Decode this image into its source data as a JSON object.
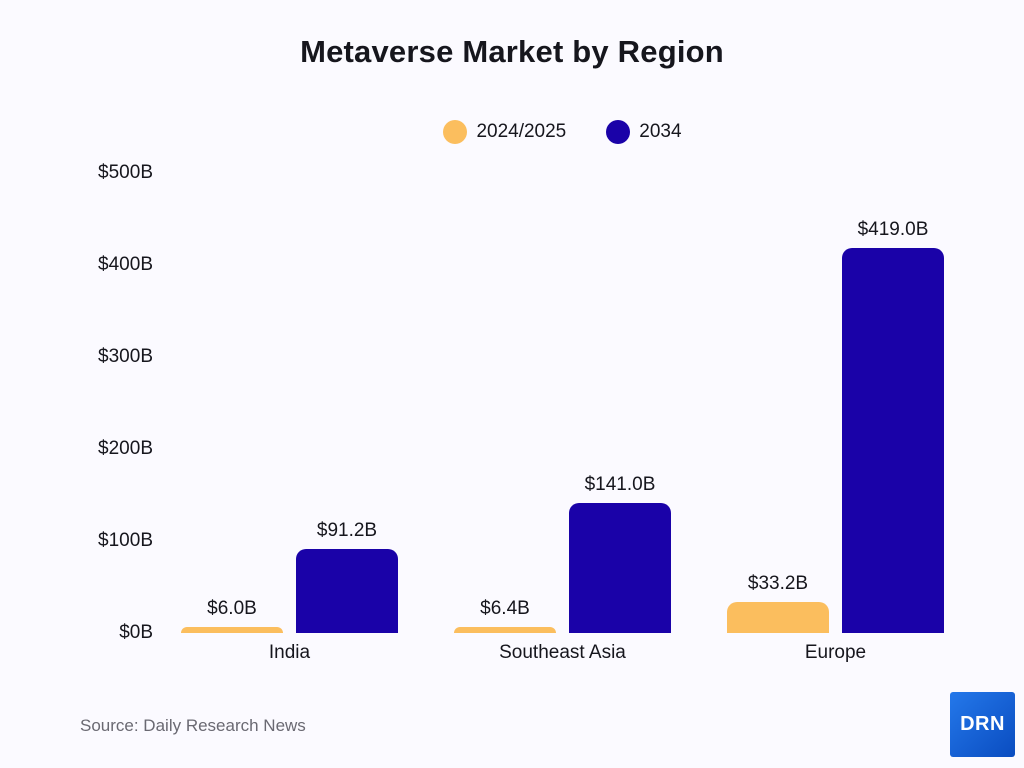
{
  "title": "Metaverse Market by Region",
  "legend": [
    {
      "label": "2024/2025",
      "color": "#FBBE5E"
    },
    {
      "label": "2034",
      "color": "#1A02A8"
    }
  ],
  "chart_data": {
    "type": "bar",
    "title": "Metaverse Market by Region",
    "categories": [
      "India",
      "Southeast Asia",
      "Europe"
    ],
    "series": [
      {
        "name": "2024/2025",
        "color": "#FBBE5E",
        "values": [
          6.0,
          6.4,
          33.2
        ],
        "labels": [
          "$6.0B",
          "$6.4B",
          "$33.2B"
        ]
      },
      {
        "name": "2034",
        "color": "#1A02A8",
        "values": [
          91.2,
          141.0,
          419.0
        ],
        "labels": [
          "$91.2B",
          "$141.0B",
          "$419.0B"
        ]
      }
    ],
    "xlabel": "",
    "ylabel": "",
    "ylim": [
      0,
      500
    ],
    "yticks": [
      {
        "value": 0,
        "label": "$0B"
      },
      {
        "value": 100,
        "label": "$100B"
      },
      {
        "value": 200,
        "label": "$200B"
      },
      {
        "value": 300,
        "label": "$300B"
      },
      {
        "value": 400,
        "label": "$400B"
      },
      {
        "value": 500,
        "label": "$500B"
      }
    ],
    "grid": false,
    "legend_position": "top",
    "bar_value_labels": true
  },
  "footer": {
    "source": "Source: Daily Research News",
    "logo_text": "DRN"
  },
  "colors": {
    "background": "#FBFAFF",
    "text": "#16161D",
    "muted_text": "#6A6972",
    "series_2024_2025": "#FBBE5E",
    "series_2034": "#1A02A8",
    "logo_gradient_start": "#2478EA",
    "logo_gradient_end": "#0A4CC0"
  }
}
